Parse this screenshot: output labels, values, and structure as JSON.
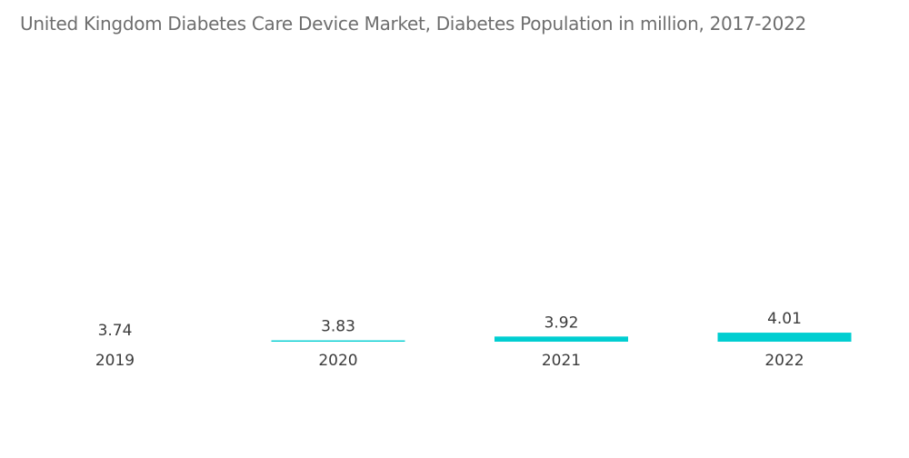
{
  "chart_data": {
    "type": "bar",
    "title": "United Kingdom Diabetes Care Device Market, Diabetes Population in million, 2017-2022",
    "categories": [
      "2019",
      "2020",
      "2021",
      "2022"
    ],
    "values": [
      3.74,
      3.83,
      3.92,
      4.01
    ],
    "bar_color": "#00CED1",
    "xlabel": "",
    "ylabel": "",
    "grid": false,
    "legend": "none"
  }
}
